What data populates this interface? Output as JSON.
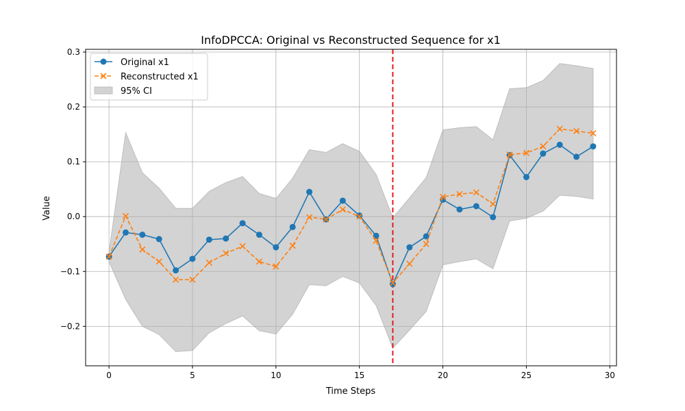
{
  "chart_data": {
    "type": "line",
    "title": "InfoDPCCA: Original vs Reconstructed Sequence for x1",
    "xlabel": "Time Steps",
    "ylabel": "Value",
    "xlim": [
      -1.4,
      30.4
    ],
    "ylim": [
      -0.272,
      0.305
    ],
    "xticks": [
      0,
      5,
      10,
      15,
      20,
      25,
      30
    ],
    "yticks": [
      -0.2,
      -0.1,
      0.0,
      0.1,
      0.2,
      0.3
    ],
    "xtick_labels": [
      "0",
      "5",
      "10",
      "15",
      "20",
      "25",
      "30"
    ],
    "ytick_labels": [
      "−0.2",
      "−0.1",
      "0.0",
      "0.1",
      "0.2",
      "0.3"
    ],
    "grid": true,
    "legend_position": "top-left",
    "x": [
      0,
      1,
      2,
      3,
      4,
      5,
      6,
      7,
      8,
      9,
      10,
      11,
      12,
      13,
      14,
      15,
      16,
      17,
      18,
      19,
      20,
      21,
      22,
      23,
      24,
      25,
      26,
      27,
      28,
      29
    ],
    "series": [
      {
        "name": "Original x1",
        "color": "#1f77b4",
        "style": "solid",
        "marker": "circle",
        "values": [
          -0.073,
          -0.029,
          -0.033,
          -0.041,
          -0.098,
          -0.077,
          -0.042,
          -0.04,
          -0.012,
          -0.033,
          -0.056,
          -0.019,
          0.045,
          -0.005,
          0.029,
          0.002,
          -0.035,
          -0.123,
          -0.056,
          -0.036,
          0.031,
          0.013,
          0.019,
          -0.001,
          0.112,
          0.072,
          0.115,
          0.131,
          0.109,
          0.128
        ]
      },
      {
        "name": "Reconstructed x1",
        "color": "#ff7f0e",
        "style": "dashed",
        "marker": "x",
        "values": [
          -0.073,
          0.001,
          -0.06,
          -0.082,
          -0.115,
          -0.115,
          -0.084,
          -0.067,
          -0.054,
          -0.082,
          -0.091,
          -0.053,
          -0.001,
          -0.005,
          0.013,
          0.0,
          -0.044,
          -0.121,
          -0.086,
          -0.05,
          0.036,
          0.041,
          0.044,
          0.023,
          0.113,
          0.116,
          0.128,
          0.16,
          0.156,
          0.152
        ]
      }
    ],
    "ci": {
      "name": "95% CI",
      "color": "#d3d3d3",
      "upper": [
        -0.065,
        0.153,
        0.08,
        0.052,
        0.015,
        0.015,
        0.046,
        0.062,
        0.073,
        0.042,
        0.033,
        0.07,
        0.122,
        0.117,
        0.133,
        0.119,
        0.077,
        -0.002,
        0.034,
        0.071,
        0.158,
        0.162,
        0.164,
        0.14,
        0.233,
        0.235,
        0.248,
        0.279,
        0.275,
        0.27
      ],
      "lower": [
        -0.082,
        -0.151,
        -0.2,
        -0.215,
        -0.246,
        -0.244,
        -0.212,
        -0.195,
        -0.181,
        -0.208,
        -0.214,
        -0.178,
        -0.124,
        -0.126,
        -0.109,
        -0.121,
        -0.162,
        -0.24,
        -0.207,
        -0.173,
        -0.088,
        -0.082,
        -0.077,
        -0.095,
        -0.008,
        -0.003,
        0.01,
        0.039,
        0.037,
        0.032
      ]
    },
    "vline": {
      "x": 17,
      "color": "#e41a1c",
      "style": "dashed"
    }
  }
}
